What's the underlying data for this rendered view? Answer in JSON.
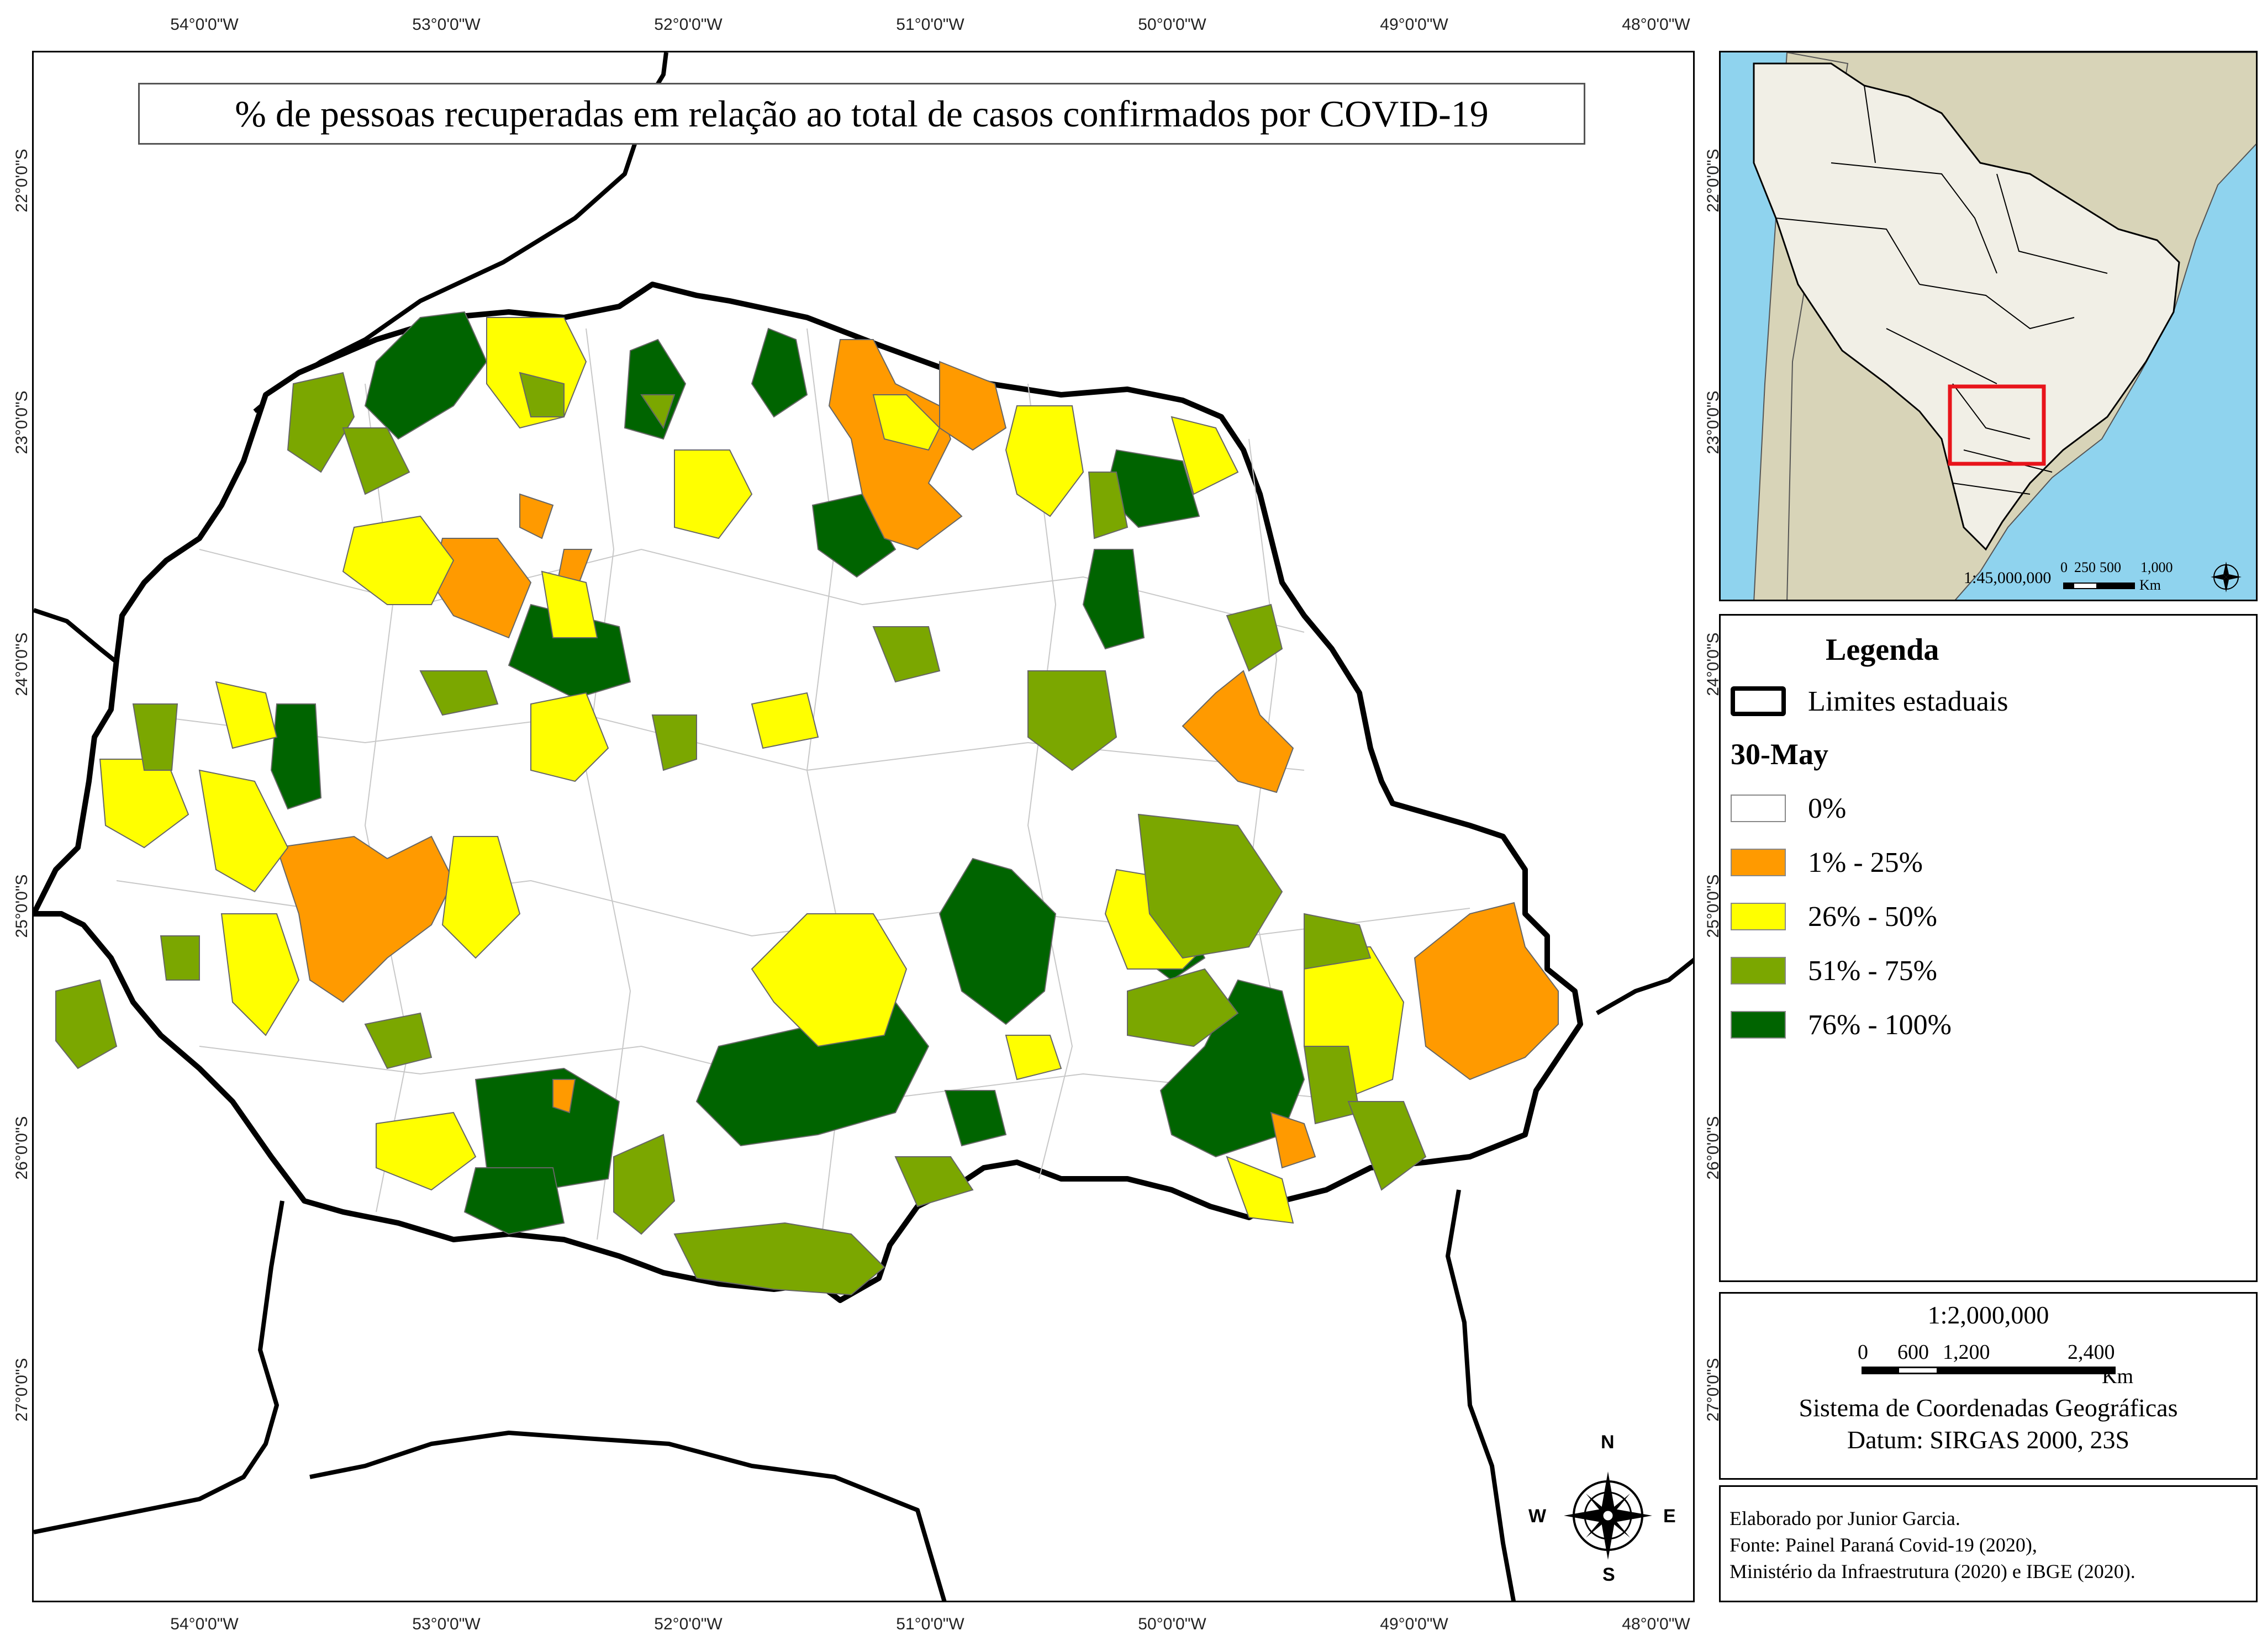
{
  "map": {
    "title": "% de pessoas recuperadas em relação ao total de casos confirmados por COVID-19",
    "lon_ticks": [
      "54°0'0\"W",
      "53°0'0\"W",
      "52°0'0\"W",
      "51°0'0\"W",
      "50°0'0\"W",
      "49°0'0\"W",
      "48°0'0\"W"
    ],
    "lat_ticks": [
      "22°0'0\"S",
      "23°0'0\"S",
      "24°0'0\"S",
      "25°0'0\"S",
      "26°0'0\"S",
      "27°0'0\"S"
    ],
    "north_arrow": {
      "n": "N",
      "s": "S",
      "e": "E",
      "w": "W",
      "icon": "compass-rose-icon"
    }
  },
  "inset": {
    "scale_ratio": "1:45,000,000",
    "scale_ticks": [
      "0",
      "250",
      "500",
      "1,000"
    ],
    "scale_unit": "Km",
    "highlight_color": "#e8141b"
  },
  "legend": {
    "title": "Legenda",
    "boundary_label": "Limites estaduais",
    "date": "30-May",
    "classes": [
      {
        "label": "0%",
        "color": "#ffffff"
      },
      {
        "label": "1% - 25%",
        "color": "#ff9a00"
      },
      {
        "label": "26% - 50%",
        "color": "#ffff00"
      },
      {
        "label": "51% - 75%",
        "color": "#7ba700"
      },
      {
        "label": "76% - 100%",
        "color": "#006400"
      }
    ]
  },
  "scale": {
    "ratio": "1:2,000,000",
    "ticks": [
      "0",
      "600",
      "1,200",
      "2,400"
    ],
    "unit": "Km",
    "crs": "Sistema de Coordenadas Geográficas",
    "datum": "Datum: SIRGAS 2000, 23S"
  },
  "credits": {
    "author": "Elaborado por Junior Garcia.",
    "source1": "Fonte: Painel Paraná Covid-19 (2020),",
    "source2": "Ministério da Infraestrutura (2020) e IBGE (2020)."
  }
}
